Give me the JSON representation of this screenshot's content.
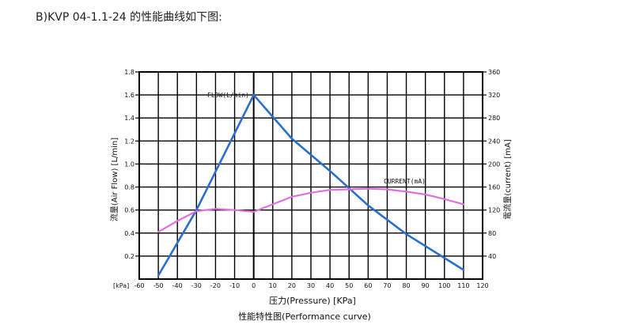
{
  "heading": "B)KVP 04-1.1-24 的性能曲线如下图:",
  "chart_data": {
    "type": "line",
    "title": "性能特性图(Performance curve)",
    "xlabel": "压力(Pressure) [KPa]",
    "x_unit_label": "[kPa]",
    "ylabel": "流量(Air Flow) [L/min]",
    "y2label": "電流量(current) [mA]",
    "xlim": [
      -60,
      120
    ],
    "ylim": [
      0,
      1.8
    ],
    "y2lim": [
      0,
      360
    ],
    "x_ticks": [
      -60,
      -50,
      -40,
      -30,
      -20,
      -10,
      0,
      10,
      20,
      30,
      40,
      50,
      60,
      70,
      80,
      90,
      100,
      110,
      120
    ],
    "y_ticks": [
      0.2,
      0.4,
      0.6,
      0.8,
      1.0,
      1.2,
      1.4,
      1.6,
      1.8
    ],
    "y_tick_labels": [
      "0.2",
      "0.4",
      "0.6",
      "0.8",
      "1.0",
      "1.2",
      "1.4",
      "1.6",
      "1.8"
    ],
    "y2_ticks": [
      40,
      80,
      120,
      160,
      200,
      240,
      280,
      320,
      360
    ],
    "grid": true,
    "series": [
      {
        "name": "FLOW(L/min)",
        "axis": "left",
        "color": "#2a6fc9",
        "x": [
          -50,
          -30,
          0,
          20,
          40,
          60,
          80,
          110
        ],
        "y": [
          0.03,
          0.6,
          1.6,
          1.22,
          0.94,
          0.64,
          0.39,
          0.08
        ]
      },
      {
        "name": "CURRENT(mA)",
        "axis": "right",
        "color": "#e070e0",
        "x": [
          -50,
          -40,
          -30,
          -20,
          -10,
          0,
          10,
          20,
          30,
          40,
          50,
          60,
          70,
          80,
          90,
          100,
          110
        ],
        "y": [
          82,
          101,
          118,
          122,
          120,
          117,
          130,
          143,
          150,
          155,
          156,
          157,
          156,
          152,
          147,
          139,
          130
        ]
      }
    ]
  }
}
